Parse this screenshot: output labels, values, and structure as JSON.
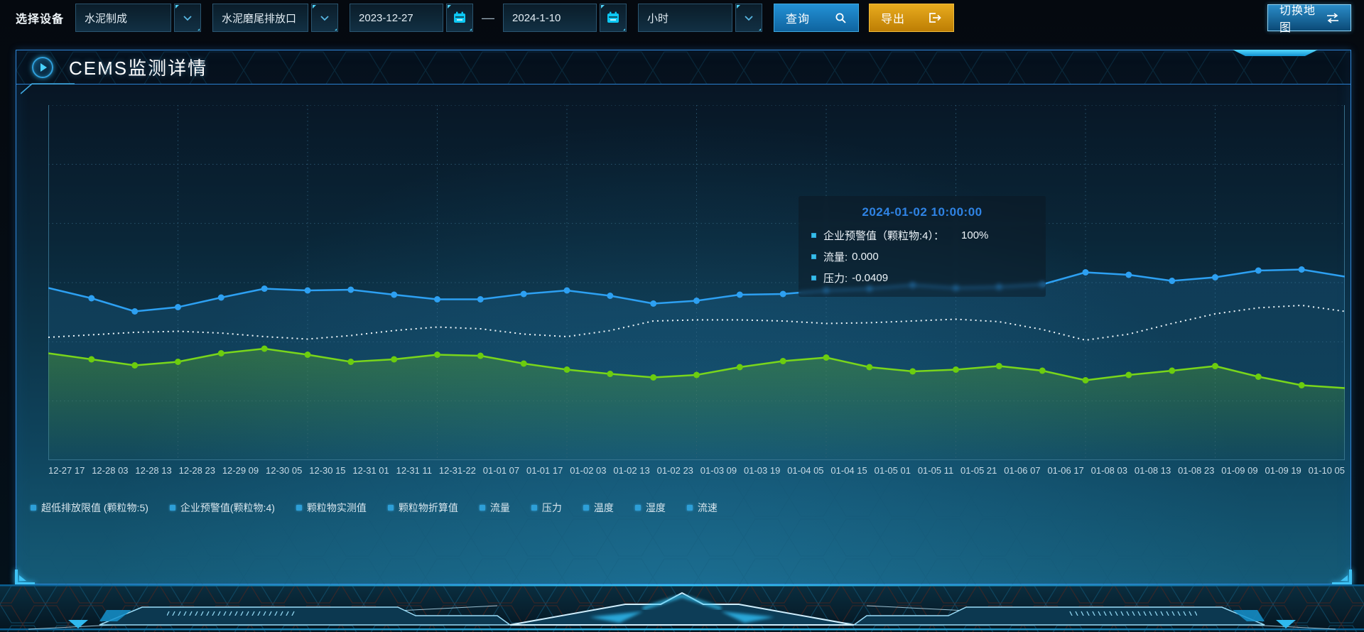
{
  "toolbar": {
    "device_label": "选择设备",
    "process_select_value": "水泥制成",
    "outlet_select_value": "水泥磨尾排放口",
    "date_start": "2023-12-27",
    "date_separator": "—",
    "date_end": "2024-1-10",
    "interval_select_value": "小时",
    "query_label": "查询",
    "export_label": "导出",
    "switch_map_label": "切换地图"
  },
  "panel": {
    "title": "CEMS监测详情"
  },
  "tooltip": {
    "title": "2024-01-02 10:00:00",
    "rows": [
      {
        "label": "企业预警值（颗粒物:4）：",
        "value": "100%"
      },
      {
        "label": "流量:",
        "value": "0.000"
      },
      {
        "label": "压力:",
        "value": "-0.0409"
      }
    ]
  },
  "chart_data": {
    "type": "line",
    "title": "CEMS监测详情",
    "x_labels": [
      "12-27 17",
      "12-28 03",
      "12-28 13",
      "12-28 23",
      "12-29 09",
      "12-30 05",
      "12-30 15",
      "12-31 01",
      "12-31 11",
      "12-31-22",
      "01-01 07",
      "01-01 17",
      "01-02 03",
      "01-02 13",
      "01-02 23",
      "01-03 09",
      "01-03 19",
      "01-04 05",
      "01-04 15",
      "01-05 01",
      "01-05 11",
      "01-05 21",
      "01-06 07",
      "01-06 17",
      "01-08 03",
      "01-08 13",
      "01-08 23",
      "01-09 09",
      "01-09 19",
      "01-10 05"
    ],
    "y_axis_visible": false,
    "grid": "dotted",
    "legend_position": "bottom-left",
    "legend": [
      "超低排放限值 (颗粒物:5)",
      "企业预警值(颗粒物:4)",
      "颗粒物实测值",
      "颗粒物折算值",
      "流量",
      "压力",
      "温度",
      "湿度",
      "流速"
    ],
    "series": [
      {
        "id": "blue-line",
        "name": "蓝色实线(带点)",
        "color": "#2da0f2",
        "marker_color": "#2da0f2",
        "markers": true,
        "dashed": false,
        "area_gradient": "blueFill",
        "y_percent_from_top": [
          51.5,
          54.4,
          58.1,
          56.9,
          54.2,
          51.7,
          52.2,
          52.0,
          53.4,
          54.7,
          54.7,
          53.2,
          52.2,
          53.7,
          55.9,
          55.1,
          53.4,
          53.2,
          52.2,
          51.7,
          50.7,
          51.5,
          51.2,
          50.5,
          47.1,
          47.8,
          49.5,
          48.5,
          46.6,
          46.3,
          48.3
        ]
      },
      {
        "id": "white-dashed-line",
        "name": "白色虚线",
        "color": "#eff7fb",
        "markers": false,
        "dashed": true,
        "area_gradient": null,
        "y_percent_from_top": [
          65.4,
          64.7,
          64.0,
          63.7,
          64.2,
          65.2,
          65.9,
          64.9,
          63.5,
          62.5,
          63.0,
          64.5,
          65.2,
          63.5,
          60.8,
          60.5,
          60.5,
          60.8,
          61.5,
          61.3,
          60.8,
          60.3,
          61.0,
          63.2,
          66.2,
          64.5,
          61.5,
          58.8,
          57.1,
          56.4,
          58.1
        ]
      },
      {
        "id": "green-line",
        "name": "绿色实线(带点)",
        "color": "#79d61b",
        "marker_color": "#6ccd0e",
        "markers": true,
        "dashed": false,
        "area_gradient": "greenFill",
        "y_percent_from_top": [
          69.9,
          71.6,
          73.3,
          72.3,
          69.9,
          68.6,
          70.3,
          72.3,
          71.6,
          70.3,
          70.6,
          72.8,
          74.5,
          75.7,
          76.7,
          76.0,
          73.8,
          72.1,
          71.1,
          73.8,
          75.0,
          74.5,
          73.5,
          74.8,
          77.5,
          76.0,
          74.8,
          73.5,
          76.5,
          78.9,
          79.7
        ]
      }
    ]
  },
  "colors": {
    "accent_cyan": "#35c3f2",
    "panel_border": "#2f86d8",
    "query_button": "#1b84c8",
    "export_button": "#d29413",
    "tooltip_title": "#2f83e4",
    "legend_marker": "#2d9fd8",
    "blue_series": "#2da0f2",
    "green_series": "#79d61b"
  }
}
